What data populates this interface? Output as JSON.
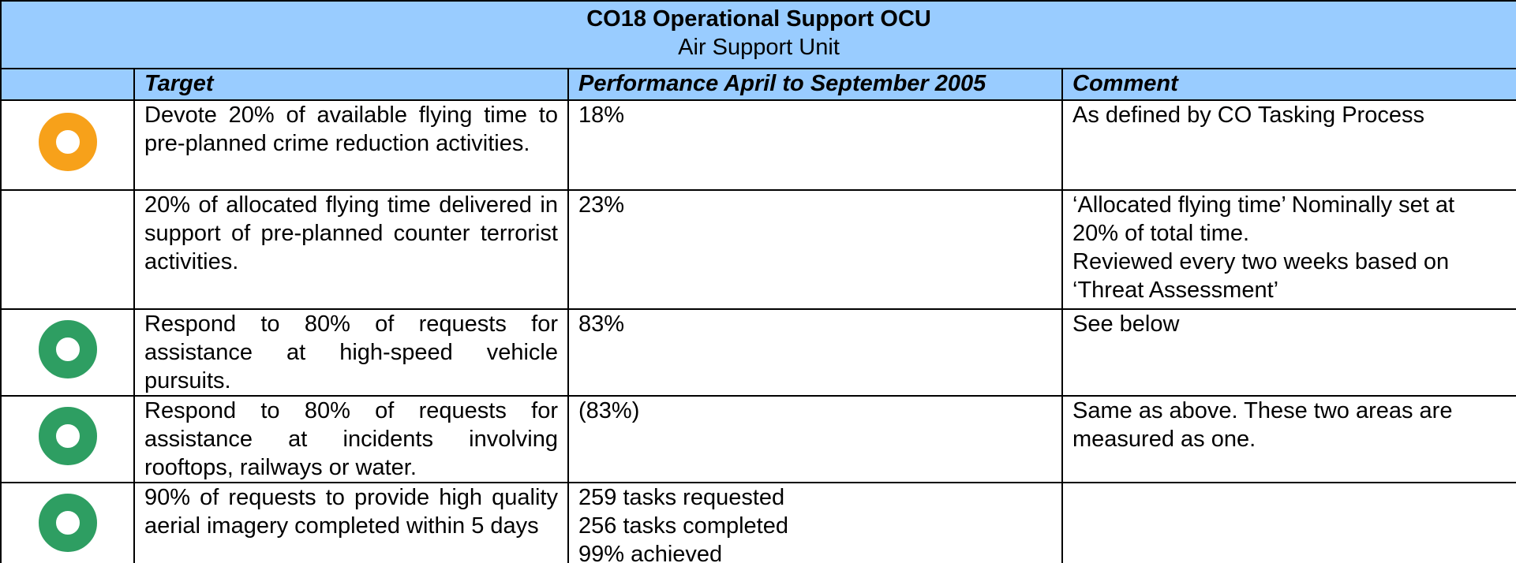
{
  "header": {
    "title": "CO18 Operational Support OCU",
    "subtitle": "Air Support Unit"
  },
  "columns": [
    "Target",
    "Performance April to September 2005",
    "Comment"
  ],
  "rows": [
    {
      "icon_color": "#f7a11a",
      "target": "Devote 20% of available flying time to pre-planned crime reduction activities.",
      "performance": [
        "18%"
      ],
      "comment": [
        "As defined by CO Tasking Process"
      ]
    },
    {
      "icon_color": null,
      "target": "20% of allocated flying time delivered in support of pre-planned counter terrorist activities.",
      "performance": [
        "23%"
      ],
      "comment": [
        "‘Allocated flying time’ Nominally set at 20% of total time.",
        "Reviewed every two weeks based on ‘Threat Assessment’"
      ]
    },
    {
      "icon_color": "#2e9e62",
      "target": "Respond to 80% of requests for assistance at high-speed vehicle pursuits.",
      "performance": [
        "83%"
      ],
      "comment": [
        "See below"
      ]
    },
    {
      "icon_color": "#2e9e62",
      "target": "Respond to 80% of requests for assistance at incidents involving rooftops, railways or water.",
      "performance": [
        "(83%)"
      ],
      "comment": [
        "Same as above.  These two areas are measured as one."
      ]
    },
    {
      "icon_color": "#2e9e62",
      "target": "90% of requests to provide high quality aerial imagery completed within 5 days",
      "performance": [
        "259 tasks requested",
        "256 tasks completed",
        "99% achieved"
      ],
      "comment": []
    }
  ]
}
